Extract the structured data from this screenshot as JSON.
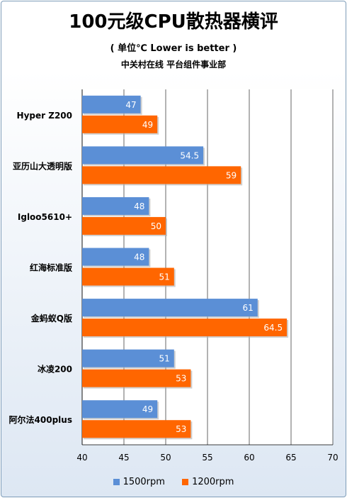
{
  "title": "100元级CPU散热器横评",
  "subtitle": "( 单位℃  Lower is better )",
  "source": "中关村在线 平台组件事业部",
  "colors": {
    "s1": "#5b8fd6",
    "s2": "#ff6600",
    "grid": "#000000"
  },
  "chart_data": {
    "type": "bar",
    "orientation": "horizontal",
    "categories": [
      "Hyper Z200",
      "亚历山大透明版",
      "Igloo5610+",
      "红海标准版",
      "金蚂蚁Q版",
      "冰凌200",
      "阿尔法400plus"
    ],
    "series": [
      {
        "name": "1500rpm",
        "values": [
          47,
          54.5,
          48,
          48,
          61,
          51,
          49
        ]
      },
      {
        "name": "1200rpm",
        "values": [
          49,
          59,
          50,
          51,
          64.5,
          53,
          53
        ]
      }
    ],
    "xlim": [
      40,
      70
    ],
    "xticks": [
      40,
      45,
      50,
      55,
      60,
      65,
      70
    ],
    "grid": true,
    "legend": "bottom"
  }
}
